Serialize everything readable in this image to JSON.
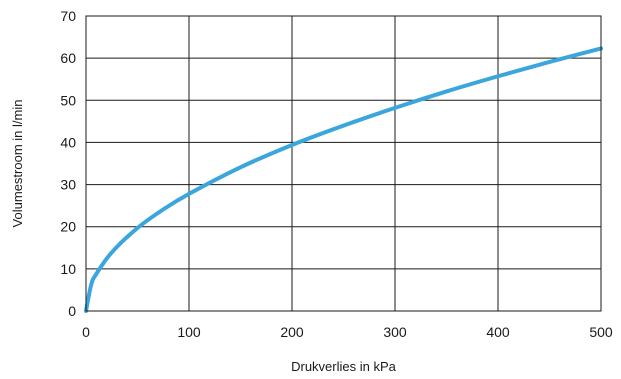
{
  "chart_data": {
    "type": "line",
    "title": "",
    "xlabel": "Drukverlies in kPa",
    "ylabel": "Volumestroom in l/min",
    "xlim": [
      0,
      500
    ],
    "ylim": [
      0,
      70
    ],
    "x_ticks": [
      "0",
      "100",
      "200",
      "300",
      "400",
      "500"
    ],
    "y_ticks": [
      "0",
      "10",
      "20",
      "30",
      "40",
      "50",
      "60",
      "70"
    ],
    "grid": true,
    "series": [
      {
        "color": "#3aa6dc",
        "x": [
          0,
          5,
          10,
          25,
          50,
          75,
          100,
          150,
          200,
          250,
          300,
          350,
          400,
          450,
          500
        ],
        "y": [
          0,
          6.2,
          8.8,
          13.9,
          19.7,
          24.1,
          27.8,
          34.1,
          39.4,
          44.0,
          48.2,
          52.1,
          55.7,
          59.1,
          62.3
        ]
      }
    ]
  }
}
